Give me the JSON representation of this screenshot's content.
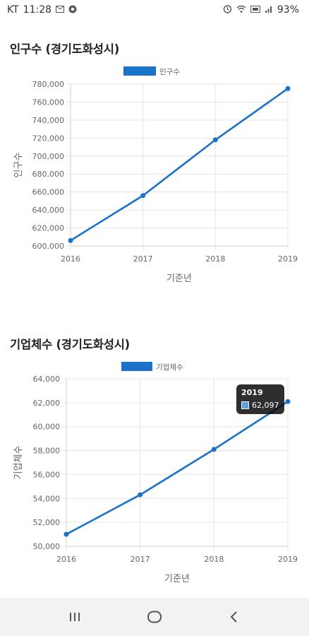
{
  "status_bar": {
    "carrier": "KT",
    "time": "11:28",
    "battery": "93%",
    "left_icons": [
      "gmail-icon",
      "app-notification-icon"
    ],
    "right_icons": [
      "alarm-icon",
      "wifi-icon",
      "volte-icon",
      "signal-icon"
    ]
  },
  "charts": [
    {
      "title": "인구수 (경기도화성시)",
      "legend_label": "인구수"
    },
    {
      "title": "기업체수 (경기도화성시)",
      "legend_label": "기업체수"
    }
  ],
  "chart_data": [
    {
      "type": "line",
      "title": "인구수 (경기도화성시)",
      "x": [
        "2016",
        "2017",
        "2018",
        "2019"
      ],
      "series": [
        {
          "name": "인구수",
          "values": [
            606000,
            656000,
            718000,
            775000
          ]
        }
      ],
      "xlabel": "기준년",
      "ylabel": "인구수",
      "ylim": [
        600000,
        780000
      ],
      "yticks": [
        "780,000",
        "760,000",
        "740,000",
        "720,000",
        "700,000",
        "680,000",
        "660,000",
        "640,000",
        "620,000",
        "600,000"
      ],
      "ytick_values": [
        780000,
        760000,
        740000,
        720000,
        700000,
        680000,
        660000,
        640000,
        620000,
        600000
      ],
      "grid": true,
      "legend": "top",
      "color": "#1a73c8"
    },
    {
      "type": "line",
      "title": "기업체수 (경기도화성시)",
      "x": [
        "2016",
        "2017",
        "2018",
        "2019"
      ],
      "series": [
        {
          "name": "기업체수",
          "values": [
            51000,
            54300,
            58100,
            62097
          ]
        }
      ],
      "xlabel": "기준년",
      "ylabel": "기업체수",
      "ylim": [
        50000,
        64000
      ],
      "yticks": [
        "64,000",
        "62,000",
        "60,000",
        "58,000",
        "56,000",
        "54,000",
        "52,000",
        "50,000"
      ],
      "ytick_values": [
        64000,
        62000,
        60000,
        58000,
        56000,
        54000,
        52000,
        50000
      ],
      "grid": true,
      "legend": "top",
      "color": "#1a73c8",
      "tooltip": {
        "title": "2019",
        "value": "62,097"
      }
    }
  ],
  "nav_bar": {
    "buttons": [
      "recent-apps",
      "home",
      "back"
    ]
  }
}
